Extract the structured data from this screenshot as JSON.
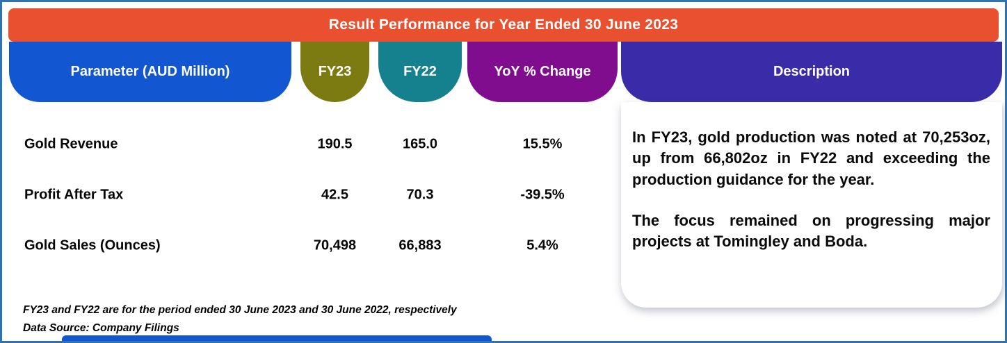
{
  "banner": {
    "title": "Result Performance for Year Ended 30 June 2023"
  },
  "table": {
    "headers": [
      {
        "label": "Parameter (AUD Million)",
        "color": "#1356D1"
      },
      {
        "label": "FY23",
        "color": "#7C7B11"
      },
      {
        "label": "FY22",
        "color": "#15808E"
      },
      {
        "label": "YoY % Change",
        "color": "#800D8E"
      },
      {
        "label": "Description",
        "color": "#3A2BA8"
      }
    ],
    "rows": [
      {
        "parameter": "Gold Revenue",
        "fy23": "190.5",
        "fy22": "165.0",
        "yoy": "15.5%"
      },
      {
        "parameter": "Profit After Tax",
        "fy23": "42.5",
        "fy22": "70.3",
        "yoy": "-39.5%"
      },
      {
        "parameter": "Gold Sales (Ounces)",
        "fy23": "70,498",
        "fy22": "66,883",
        "yoy": "5.4%"
      }
    ]
  },
  "description": {
    "paragraphs": [
      "In FY23, gold production was noted at 70,253oz, up from 66,802oz in FY22 and exceeding the production guidance for the year.",
      "The focus remained on progressing major projects at Tomingley and Boda."
    ]
  },
  "footnotes": [
    "FY23 and FY22 are for the period ended 30 June 2023 and 30 June 2022, respectively",
    "Data Source: Company Filings"
  ],
  "colors": {
    "banner": "#E8502F",
    "border": "#2E74B5",
    "bottom_bar": "#1356D1",
    "text": "#050505"
  },
  "chart_data": {
    "type": "table",
    "title": "Result Performance for Year Ended 30 June 2023",
    "columns": [
      "Parameter (AUD Million)",
      "FY23",
      "FY22",
      "YoY % Change"
    ],
    "rows": [
      [
        "Gold Revenue",
        190.5,
        165.0,
        "15.5%"
      ],
      [
        "Profit After Tax",
        42.5,
        70.3,
        "-39.5%"
      ],
      [
        "Gold Sales (Ounces)",
        "70,498",
        "66,883",
        "5.4%"
      ]
    ],
    "notes": [
      "In FY23, gold production was noted at 70,253oz, up from 66,802oz in FY22 and exceeding the production guidance for the year.",
      "The focus remained on progressing major projects at Tomingley and Boda.",
      "FY23 and FY22 are for the period ended 30 June 2023 and 30 June 2022, respectively",
      "Data Source: Company Filings"
    ]
  }
}
